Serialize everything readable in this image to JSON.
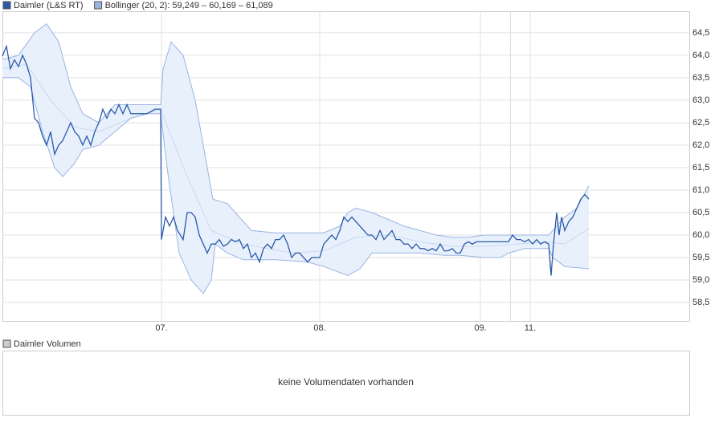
{
  "chart_data": [
    {
      "type": "line",
      "xlim": [
        0,
        855
      ],
      "ylim": [
        58.09,
        64.98
      ],
      "yticks": [
        {
          "value": 58.5,
          "label": "58,5"
        },
        {
          "value": 59,
          "label": "59,0"
        },
        {
          "value": 59.5,
          "label": "59,5"
        },
        {
          "value": 60,
          "label": "60,0"
        },
        {
          "value": 60.5,
          "label": "60,5"
        },
        {
          "value": 61,
          "label": "61,0"
        },
        {
          "value": 61.5,
          "label": "61,5"
        },
        {
          "value": 62,
          "label": "62,0"
        },
        {
          "value": 62.5,
          "label": "62,5"
        },
        {
          "value": 63,
          "label": "63,0"
        },
        {
          "value": 63.5,
          "label": "63,5"
        },
        {
          "value": 64,
          "label": "64,0"
        },
        {
          "value": 64.5,
          "label": "64,5"
        }
      ],
      "xticks": [
        {
          "value": 198,
          "label": "07."
        },
        {
          "value": 395,
          "label": "08."
        },
        {
          "value": 595,
          "label": "09."
        },
        {
          "value": 657,
          "label": "11."
        }
      ],
      "grid": true,
      "series": [
        {
          "name": "Daimler (L&S RT)",
          "color": "#2a5aa8",
          "x": [
            0,
            5,
            10,
            15,
            20,
            25,
            30,
            35,
            40,
            45,
            50,
            55,
            60,
            65,
            70,
            75,
            80,
            85,
            90,
            95,
            100,
            105,
            110,
            115,
            120,
            125,
            130,
            135,
            140,
            145,
            150,
            155,
            160,
            170,
            180,
            190,
            197,
            198,
            203,
            208,
            213,
            218,
            225,
            230,
            235,
            240,
            245,
            250,
            255,
            260,
            265,
            270,
            275,
            280,
            285,
            290,
            295,
            300,
            305,
            310,
            315,
            320,
            325,
            330,
            335,
            340,
            345,
            350,
            355,
            360,
            365,
            370,
            375,
            380,
            385,
            390,
            395,
            400,
            405,
            410,
            415,
            420,
            425,
            430,
            435,
            440,
            445,
            450,
            455,
            460,
            465,
            470,
            475,
            480,
            485,
            490,
            495,
            500,
            505,
            510,
            515,
            520,
            525,
            530,
            535,
            540,
            545,
            550,
            555,
            560,
            565,
            570,
            575,
            580,
            585,
            590,
            595,
            600,
            610,
            620,
            630,
            635,
            640,
            645,
            650,
            655,
            660,
            665,
            670,
            675,
            680,
            683,
            686,
            690,
            693,
            696,
            700,
            705,
            710,
            715,
            720,
            725,
            730
          ],
          "values": [
            63.98,
            64.2,
            63.7,
            63.9,
            63.75,
            64.0,
            63.8,
            63.5,
            62.6,
            62.5,
            62.2,
            62.0,
            62.3,
            61.8,
            62.0,
            62.1,
            62.3,
            62.5,
            62.3,
            62.2,
            62.0,
            62.2,
            62.0,
            62.3,
            62.5,
            62.8,
            62.6,
            62.8,
            62.7,
            62.9,
            62.7,
            62.9,
            62.7,
            62.7,
            62.7,
            62.8,
            62.8,
            59.9,
            60.4,
            60.2,
            60.4,
            60.1,
            59.9,
            60.5,
            60.5,
            60.4,
            60.0,
            59.8,
            59.6,
            59.8,
            59.8,
            59.9,
            59.75,
            59.8,
            59.9,
            59.85,
            59.9,
            59.7,
            59.8,
            59.5,
            59.6,
            59.4,
            59.7,
            59.8,
            59.7,
            59.9,
            59.9,
            60.0,
            59.8,
            59.5,
            59.6,
            59.6,
            59.5,
            59.4,
            59.5,
            59.5,
            59.5,
            59.8,
            59.9,
            60.0,
            59.9,
            60.1,
            60.4,
            60.3,
            60.4,
            60.3,
            60.2,
            60.1,
            60.0,
            60.0,
            59.9,
            60.1,
            59.9,
            60.0,
            60.1,
            59.9,
            59.9,
            59.8,
            59.8,
            59.7,
            59.8,
            59.7,
            59.7,
            59.65,
            59.7,
            59.65,
            59.8,
            59.65,
            59.65,
            59.7,
            59.6,
            59.6,
            59.8,
            59.85,
            59.8,
            59.85,
            59.85,
            59.85,
            59.85,
            59.85,
            59.85,
            60.0,
            59.9,
            59.9,
            59.85,
            59.9,
            59.8,
            59.9,
            59.8,
            59.85,
            59.8,
            59.1,
            59.8,
            60.5,
            60.0,
            60.4,
            60.1,
            60.3,
            60.4,
            60.6,
            60.8,
            60.9,
            60.8
          ]
        }
      ],
      "bollinger": {
        "name": "Bollinger (20, 2): 59,249 – 60,169 – 61,089",
        "color": "#9ab4e0",
        "fill": "#e8f0fc",
        "middle_color": "#c8d8f0",
        "upper": {
          "x": [
            0,
            20,
            40,
            55,
            70,
            85,
            100,
            120,
            140,
            160,
            180,
            197,
            200,
            210,
            225,
            240,
            255,
            262,
            280,
            300,
            310,
            340,
            370,
            400,
            420,
            430,
            440,
            460,
            480,
            500,
            520,
            540,
            560,
            580,
            600,
            630,
            660,
            680,
            690,
            700,
            715,
            730
          ],
          "values": [
            63.9,
            64.0,
            64.5,
            64.7,
            64.3,
            63.3,
            62.7,
            62.5,
            62.9,
            62.9,
            62.9,
            62.9,
            63.7,
            64.3,
            64.0,
            63.0,
            61.5,
            60.8,
            60.7,
            60.3,
            60.1,
            60.05,
            60.05,
            60.05,
            60.2,
            60.5,
            60.6,
            60.5,
            60.35,
            60.2,
            60.1,
            60.0,
            59.95,
            59.95,
            60.0,
            60.0,
            60.0,
            60.0,
            60.2,
            60.4,
            60.6,
            61.1
          ]
        },
        "middle": {
          "x": [
            0,
            30,
            60,
            90,
            120,
            160,
            197,
            230,
            260,
            300,
            360,
            400,
            440,
            480,
            520,
            560,
            600,
            640,
            680,
            700,
            730
          ],
          "values": [
            63.7,
            63.8,
            63.0,
            62.4,
            62.3,
            62.6,
            62.8,
            61.3,
            60.1,
            59.8,
            59.6,
            59.65,
            59.95,
            60.0,
            59.85,
            59.75,
            59.75,
            59.8,
            59.85,
            59.8,
            60.15
          ]
        },
        "lower": {
          "x": [
            0,
            20,
            35,
            50,
            65,
            75,
            90,
            100,
            120,
            140,
            160,
            180,
            197,
            205,
            220,
            235,
            250,
            260,
            265,
            280,
            300,
            340,
            380,
            400,
            430,
            445,
            460,
            480,
            520,
            550,
            570,
            600,
            620,
            630,
            650,
            680,
            685,
            700,
            730
          ],
          "values": [
            63.5,
            63.5,
            63.3,
            62.3,
            61.5,
            61.3,
            61.6,
            61.9,
            62.0,
            62.3,
            62.6,
            62.7,
            62.7,
            61.5,
            59.6,
            59.0,
            58.7,
            59.0,
            59.8,
            59.6,
            59.45,
            59.45,
            59.4,
            59.3,
            59.1,
            59.25,
            59.6,
            59.6,
            59.6,
            59.55,
            59.55,
            59.5,
            59.5,
            59.6,
            59.7,
            59.7,
            59.5,
            59.3,
            59.25
          ]
        }
      }
    },
    {
      "type": "empty",
      "series_name": "Daimler Volumen",
      "series_color": "#cccccc",
      "message": "keine Volumendaten vorhanden"
    }
  ]
}
